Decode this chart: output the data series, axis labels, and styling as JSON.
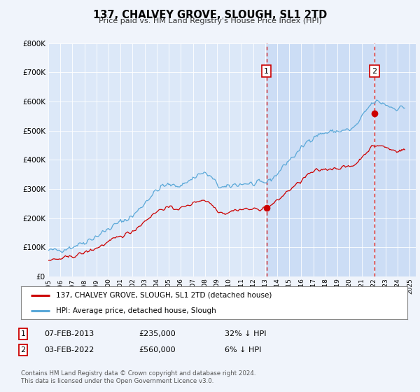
{
  "title": "137, CHALVEY GROVE, SLOUGH, SL1 2TD",
  "subtitle": "Price paid vs. HM Land Registry's House Price Index (HPI)",
  "background_color": "#f0f4fb",
  "plot_background": "#dce8f8",
  "plot_background_right": "#e8f0fb",
  "ylabel_ticks": [
    "£0",
    "£100K",
    "£200K",
    "£300K",
    "£400K",
    "£500K",
    "£600K",
    "£700K",
    "£800K"
  ],
  "ytick_values": [
    0,
    100000,
    200000,
    300000,
    400000,
    500000,
    600000,
    700000,
    800000
  ],
  "ylim": [
    0,
    800000
  ],
  "xlim_start": 1995.0,
  "xlim_end": 2025.5,
  "xtick_years": [
    1995,
    1996,
    1997,
    1998,
    1999,
    2000,
    2001,
    2002,
    2003,
    2004,
    2005,
    2006,
    2007,
    2008,
    2009,
    2010,
    2011,
    2012,
    2013,
    2014,
    2015,
    2016,
    2017,
    2018,
    2019,
    2020,
    2021,
    2022,
    2023,
    2024,
    2025
  ],
  "purchase1_x": 2013.1,
  "purchase1_y": 235000,
  "purchase2_x": 2022.08,
  "purchase2_y": 560000,
  "hpi_color": "#5aa8d8",
  "property_color": "#cc0000",
  "vline_color": "#cc0000",
  "shade_color": "#ccddf5",
  "legend_entries": [
    "137, CHALVEY GROVE, SLOUGH, SL1 2TD (detached house)",
    "HPI: Average price, detached house, Slough"
  ],
  "table_rows": [
    [
      "1",
      "07-FEB-2013",
      "£235,000",
      "32% ↓ HPI"
    ],
    [
      "2",
      "03-FEB-2022",
      "£560,000",
      "6% ↓ HPI"
    ]
  ],
  "footnote": "Contains HM Land Registry data © Crown copyright and database right 2024.\nThis data is licensed under the Open Government Licence v3.0."
}
